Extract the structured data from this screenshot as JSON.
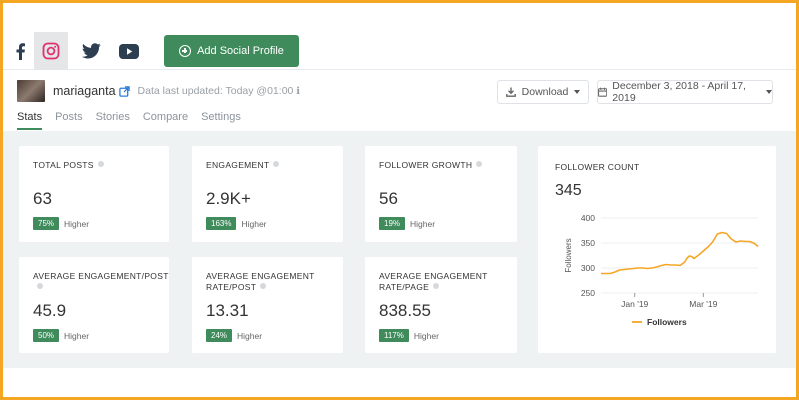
{
  "networks": [
    {
      "name": "facebook-icon",
      "active": false
    },
    {
      "name": "instagram-icon",
      "active": true
    },
    {
      "name": "twitter-icon",
      "active": false
    },
    {
      "name": "youtube-icon",
      "active": false
    }
  ],
  "header": {
    "add_profile_label": "Add Social Profile"
  },
  "profile": {
    "username": "mariaganta",
    "updated_text": "Data last updated: Today @01:00"
  },
  "toolbar": {
    "download_label": "Download",
    "date_range": "December 3, 2018 - April 17, 2019"
  },
  "tabs": [
    "Stats",
    "Posts",
    "Stories",
    "Compare",
    "Settings"
  ],
  "stats": [
    {
      "label": "TOTAL POSTS",
      "label2": "",
      "value": "63",
      "pct": "75%",
      "compare": "Higher"
    },
    {
      "label": "ENGAGEMENT",
      "label2": "",
      "value": "2.9K+",
      "pct": "163%",
      "compare": "Higher"
    },
    {
      "label": "FOLLOWER GROWTH",
      "label2": "",
      "value": "56",
      "pct": "19%",
      "compare": "Higher"
    },
    {
      "label": "AVERAGE ENGAGEMENT/POST",
      "label2": "",
      "value": "45.9",
      "pct": "50%",
      "compare": "Higher"
    },
    {
      "label": "AVERAGE ENGAGEMENT",
      "label2": "RATE/POST",
      "value": "13.31",
      "pct": "24%",
      "compare": "Higher"
    },
    {
      "label": "AVERAGE ENGAGEMENT",
      "label2": "RATE/PAGE",
      "value": "838.55",
      "pct": "117%",
      "compare": "Higher"
    }
  ],
  "follower_count": {
    "label": "FOLLOWER COUNT",
    "value": "345"
  },
  "chart_data": {
    "type": "line",
    "title": "",
    "xlabel": "",
    "ylabel": "Followers",
    "ylim": [
      250,
      400
    ],
    "yticks": [
      "250",
      "300",
      "350",
      "400"
    ],
    "xticks": [
      {
        "label": "Jan '19",
        "x": 29
      },
      {
        "label": "Mar '19",
        "x": 88
      }
    ],
    "xlim": [
      0,
      135
    ],
    "legend": "bottom",
    "color": "#f5a623",
    "series": [
      {
        "name": "Followers",
        "x": [
          0,
          4,
          8,
          12,
          16,
          20,
          24,
          28,
          32,
          36,
          40,
          44,
          48,
          52,
          56,
          60,
          64,
          68,
          72,
          74,
          76,
          78,
          80,
          84,
          88,
          92,
          96,
          100,
          104,
          108,
          112,
          116,
          120,
          124,
          128,
          132,
          135
        ],
        "values": [
          289,
          289,
          289,
          292,
          296,
          297,
          298,
          299,
          300,
          300,
          299,
          300,
          302,
          305,
          307,
          306,
          306,
          305,
          312,
          320,
          324,
          323,
          319,
          326,
          334,
          342,
          352,
          368,
          371,
          369,
          358,
          352,
          354,
          353,
          353,
          349,
          343
        ]
      }
    ]
  },
  "colors": {
    "accent": "#3f8b5c",
    "line": "#f5a623",
    "border": "#f5a623"
  }
}
